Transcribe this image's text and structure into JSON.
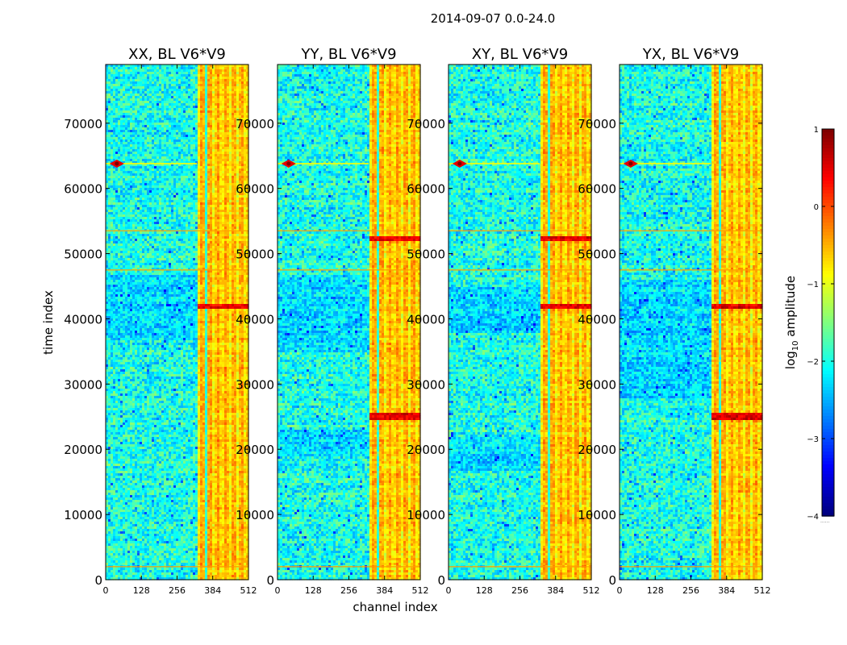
{
  "figure_title": "2014-09-07 0.0-24.0",
  "colors": {
    "colormap": [
      "#00007f",
      "#0000ff",
      "#007fff",
      "#00ffff",
      "#7fff7f",
      "#ffff00",
      "#ff7f00",
      "#ff0000",
      "#7f0000"
    ],
    "background": "#ffffff",
    "axis": "#000000"
  },
  "chart_data": [
    {
      "type": "heatmap",
      "title": "XX, BL V6*V9",
      "polarization": "XX",
      "xlabel": "channel index",
      "ylabel": "time index",
      "xlim": [
        0,
        512
      ],
      "ylim": [
        0,
        79000
      ],
      "xticks": [
        0,
        128,
        256,
        384,
        512
      ],
      "yticks": [
        0,
        10000,
        20000,
        30000,
        40000,
        50000,
        60000,
        70000
      ],
      "quiet_bands": [
        [
          37000,
          47000
        ]
      ],
      "red_bands": [
        [
          41800,
          42300
        ]
      ],
      "rfi_channel_start": 327,
      "feature_x": 40
    },
    {
      "type": "heatmap",
      "title": "YY, BL V6*V9",
      "polarization": "YY",
      "xlabel": "channel index",
      "ylabel": "time index",
      "xlim": [
        0,
        512
      ],
      "ylim": [
        0,
        79000
      ],
      "xticks": [
        0,
        128,
        256,
        384,
        512
      ],
      "yticks": [
        0,
        10000,
        20000,
        30000,
        40000,
        50000,
        60000,
        70000
      ],
      "quiet_bands": [
        [
          35000,
          47000
        ],
        [
          19000,
          23000
        ]
      ],
      "red_bands": [
        [
          52000,
          53000
        ],
        [
          24800,
          25800
        ]
      ],
      "rfi_channel_start": 327,
      "feature_x": 40
    },
    {
      "type": "heatmap",
      "title": "XY, BL V6*V9",
      "polarization": "XY",
      "xlabel": "channel index",
      "ylabel": "time index",
      "xlim": [
        0,
        512
      ],
      "ylim": [
        0,
        79000
      ],
      "xticks": [
        0,
        128,
        256,
        384,
        512
      ],
      "yticks": [
        0,
        10000,
        20000,
        30000,
        40000,
        50000,
        60000,
        70000
      ],
      "quiet_bands": [
        [
          17000,
          22000
        ],
        [
          38000,
          45000
        ]
      ],
      "red_bands": [
        [
          41800,
          42300
        ],
        [
          52000,
          53000
        ]
      ],
      "rfi_channel_start": 327,
      "feature_x": 40
    },
    {
      "type": "heatmap",
      "title": "YX, BL V6*V9",
      "polarization": "YX",
      "xlabel": "channel index",
      "ylabel": "time index",
      "xlim": [
        0,
        512
      ],
      "ylim": [
        0,
        79000
      ],
      "xticks": [
        0,
        128,
        256,
        384,
        512
      ],
      "yticks": [
        0,
        10000,
        20000,
        30000,
        40000,
        50000,
        60000,
        70000
      ],
      "quiet_bands": [
        [
          28000,
          46000
        ]
      ],
      "red_bands": [
        [
          24800,
          25800
        ],
        [
          41800,
          42300
        ]
      ],
      "rfi_channel_start": 327,
      "feature_x": 40
    }
  ],
  "colorbar": {
    "label_prefix": "log",
    "label_subscript": "10",
    "label_suffix": " amplitude",
    "range": [
      -4,
      1
    ],
    "ticks": [
      1,
      0,
      -1,
      -2,
      -3,
      -4
    ],
    "tick_labels": [
      "1",
      "0",
      "−1",
      "−2",
      "−3",
      "−4"
    ],
    "extension_mark": "......"
  }
}
